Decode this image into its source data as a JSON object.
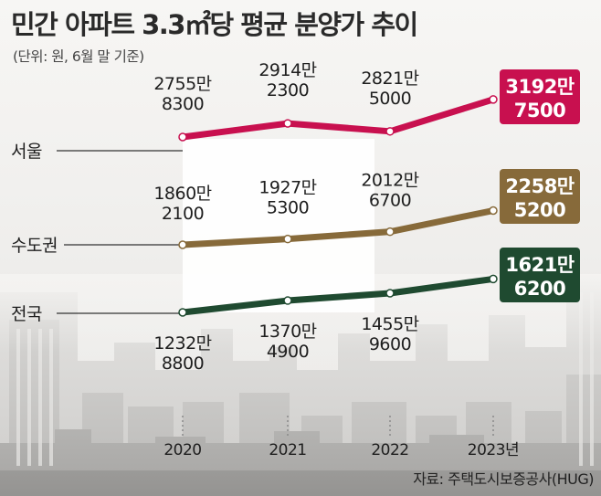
{
  "title": "민간 아파트 3.3㎡당 평균 분양가 추이",
  "unit_note": "(단위: 원, 6월 말 기준)",
  "source": "자료: 주택도시보증공사(HUG)",
  "colors": {
    "seoul": "#c8104f",
    "metro": "#876a3a",
    "national": "#1f4a30"
  },
  "chart_data": {
    "type": "line",
    "title": "민간 아파트 3.3㎡당 평균 분양가 추이",
    "xlabel": "",
    "ylabel": "",
    "unit": "원",
    "categories": [
      "2020",
      "2021",
      "2022",
      "2023년"
    ],
    "series": [
      {
        "key": "seoul",
        "name": "서울",
        "values": [
          27558300,
          29142300,
          28215000,
          31927500
        ],
        "labels": [
          [
            "2755만",
            "8300"
          ],
          [
            "2914만",
            "2300"
          ],
          [
            "2821만",
            "5000"
          ],
          [
            "3192만",
            "7500"
          ]
        ]
      },
      {
        "key": "metro",
        "name": "수도권",
        "values": [
          18602100,
          19275300,
          20126700,
          22585200
        ],
        "labels": [
          [
            "1860만",
            "2100"
          ],
          [
            "1927만",
            "5300"
          ],
          [
            "2012만",
            "6700"
          ],
          [
            "2258만",
            "5200"
          ]
        ]
      },
      {
        "key": "national",
        "name": "전국",
        "values": [
          12328800,
          13704900,
          14559600,
          16216200
        ],
        "labels": [
          [
            "1232만",
            "8800"
          ],
          [
            "1370만",
            "4900"
          ],
          [
            "1455만",
            "9600"
          ],
          [
            "1621만",
            "6200"
          ]
        ]
      }
    ]
  }
}
